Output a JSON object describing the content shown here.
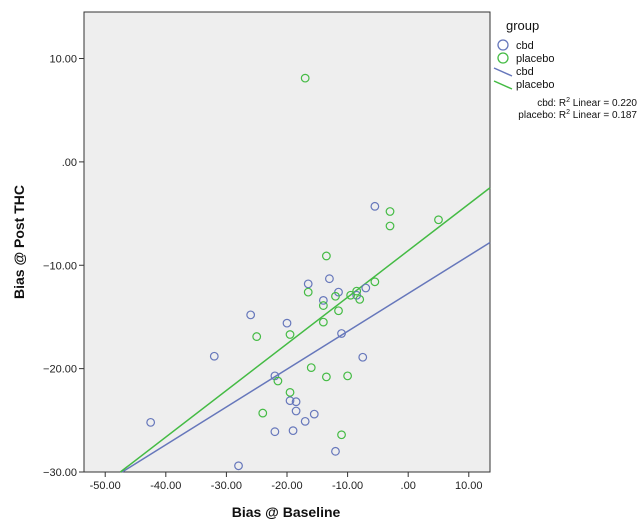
{
  "chart_data": {
    "type": "scatter",
    "xlabel": "Bias @ Baseline",
    "ylabel": "Bias @ Post THC",
    "xlim": [
      -53.5,
      13.5
    ],
    "ylim": [
      -30,
      14.5
    ],
    "x_ticks": [
      -50,
      -40,
      -30,
      -20,
      -10,
      0,
      10
    ],
    "x_tick_labels": [
      "-50.00",
      "-40.00",
      "-30.00",
      "-20.00",
      "-10.00",
      ".00",
      "10.00"
    ],
    "y_ticks": [
      -30,
      -20,
      -10,
      0,
      10
    ],
    "y_tick_labels": [
      "−30.00",
      "−20.00",
      "−10.00",
      ".00",
      "10.00"
    ],
    "grid": false,
    "plot_background": "#eeeeee",
    "legend": {
      "title": "group",
      "placement": "right",
      "marker_labels": [
        "cbd",
        "placebo"
      ],
      "line_labels": [
        "cbd",
        "placebo"
      ]
    },
    "annotations": [
      {
        "prefix": "cbd: R",
        "sup": "2",
        "suffix": " Linear = 0.220"
      },
      {
        "prefix": "placebo: R",
        "sup": "2",
        "suffix": " Linear = 0.187"
      }
    ],
    "series": [
      {
        "name": "cbd",
        "color": "#6677bb",
        "points": [
          [
            -42.5,
            -25.2
          ],
          [
            -32,
            -18.8
          ],
          [
            -28,
            -29.4
          ],
          [
            -26,
            -14.8
          ],
          [
            -22,
            -20.7
          ],
          [
            -22,
            -26.1
          ],
          [
            -20,
            -15.6
          ],
          [
            -19.5,
            -23.1
          ],
          [
            -19,
            -26
          ],
          [
            -18.5,
            -24.1
          ],
          [
            -18.5,
            -23.2
          ],
          [
            -17,
            -25.1
          ],
          [
            -16.5,
            -11.8
          ],
          [
            -15.5,
            -24.4
          ],
          [
            -14,
            -13.4
          ],
          [
            -13,
            -11.3
          ],
          [
            -12,
            -28
          ],
          [
            -11.5,
            -12.6
          ],
          [
            -11,
            -16.6
          ],
          [
            -8.5,
            -12.9
          ],
          [
            -7.5,
            -18.9
          ],
          [
            -7,
            -12.2
          ],
          [
            -5.5,
            -4.3
          ]
        ],
        "fit_line": [
          [
            -47.2,
            -30
          ],
          [
            13.5,
            -7.8
          ]
        ]
      },
      {
        "name": "placebo",
        "color": "#44bb44",
        "points": [
          [
            -17,
            8.1
          ],
          [
            -25,
            -16.9
          ],
          [
            -24,
            -24.3
          ],
          [
            -21.5,
            -21.2
          ],
          [
            -19.5,
            -22.3
          ],
          [
            -19.5,
            -16.7
          ],
          [
            -16.5,
            -12.6
          ],
          [
            -16,
            -19.9
          ],
          [
            -14,
            -13.9
          ],
          [
            -14,
            -15.5
          ],
          [
            -13.5,
            -9.1
          ],
          [
            -13.5,
            -20.8
          ],
          [
            -12,
            -13
          ],
          [
            -11.5,
            -14.4
          ],
          [
            -11,
            -26.4
          ],
          [
            -10,
            -20.7
          ],
          [
            -9.5,
            -12.9
          ],
          [
            -8.5,
            -12.5
          ],
          [
            -8,
            -13.3
          ],
          [
            -5.5,
            -11.6
          ],
          [
            -3,
            -4.8
          ],
          [
            -3,
            -6.2
          ],
          [
            5,
            -5.6
          ]
        ],
        "fit_line": [
          [
            -47.5,
            -30
          ],
          [
            13.5,
            -2.5
          ]
        ]
      }
    ]
  }
}
